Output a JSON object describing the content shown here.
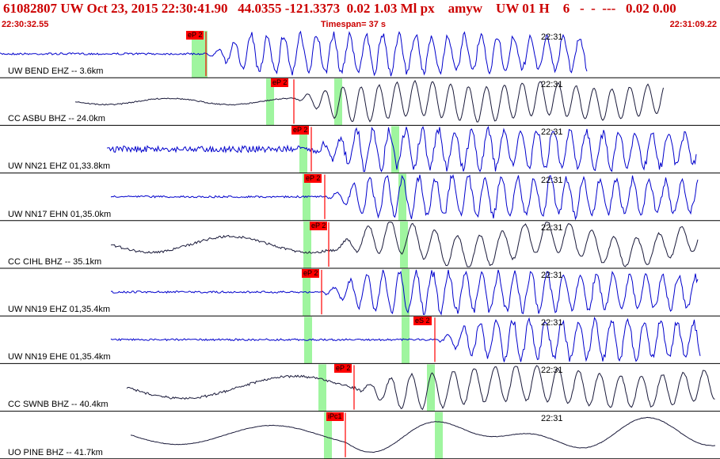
{
  "header": {
    "title": "61082807 UW Oct 23, 2015 22:30:41.90   44.0355 -121.3373  0.02 1.03 Ml px    amyw    UW 01 H    6   -  -  ---   0.02 0.00"
  },
  "subheader": {
    "start_time": "22:30:32.55",
    "timespan": "Timespan=  37 s",
    "end_time": "22:31:09.22"
  },
  "time_mark_label": "22:31",
  "colors": {
    "header_text": "#cc0000",
    "trace_blue": "#0000cc",
    "trace_dark": "#1a1a3a",
    "pick_red": "#ff0000",
    "window_green": "#9ff59f"
  },
  "panels": [
    {
      "label": "UW BEND EHZ -- 3.6km",
      "pick": "eP 2",
      "trace_color": "blue",
      "channel": "EHZ"
    },
    {
      "label": "CC ASBU BHZ -- 24.0km",
      "pick": "eP 2",
      "trace_color": "dark",
      "channel": "BHZ"
    },
    {
      "label": "UW NN21 EHZ 01,33.8km",
      "pick": "eP 2",
      "trace_color": "blue",
      "channel": "EHZ"
    },
    {
      "label": "UW NN17 EHN 01,35.0km",
      "pick": "eP 2",
      "trace_color": "blue",
      "channel": "EHN"
    },
    {
      "label": "CC CIHL BHZ -- 35.1km",
      "pick": "eP 2",
      "trace_color": "dark",
      "channel": "BHZ"
    },
    {
      "label": "UW NN19 EHZ 01,35.4km",
      "pick": "eP 2",
      "trace_color": "blue",
      "channel": "EHZ"
    },
    {
      "label": "UW NN19 EHE 01,35.4km",
      "pick": "eS 2",
      "trace_color": "blue",
      "channel": "EHE"
    },
    {
      "label": "CC SWNB BHZ -- 40.4km",
      "pick": "eP 2",
      "trace_color": "dark",
      "channel": "BHZ"
    },
    {
      "label": "UO PINE BHZ -- 41.7km",
      "pick": "iPc1",
      "trace_color": "dark",
      "channel": "BHZ"
    }
  ]
}
